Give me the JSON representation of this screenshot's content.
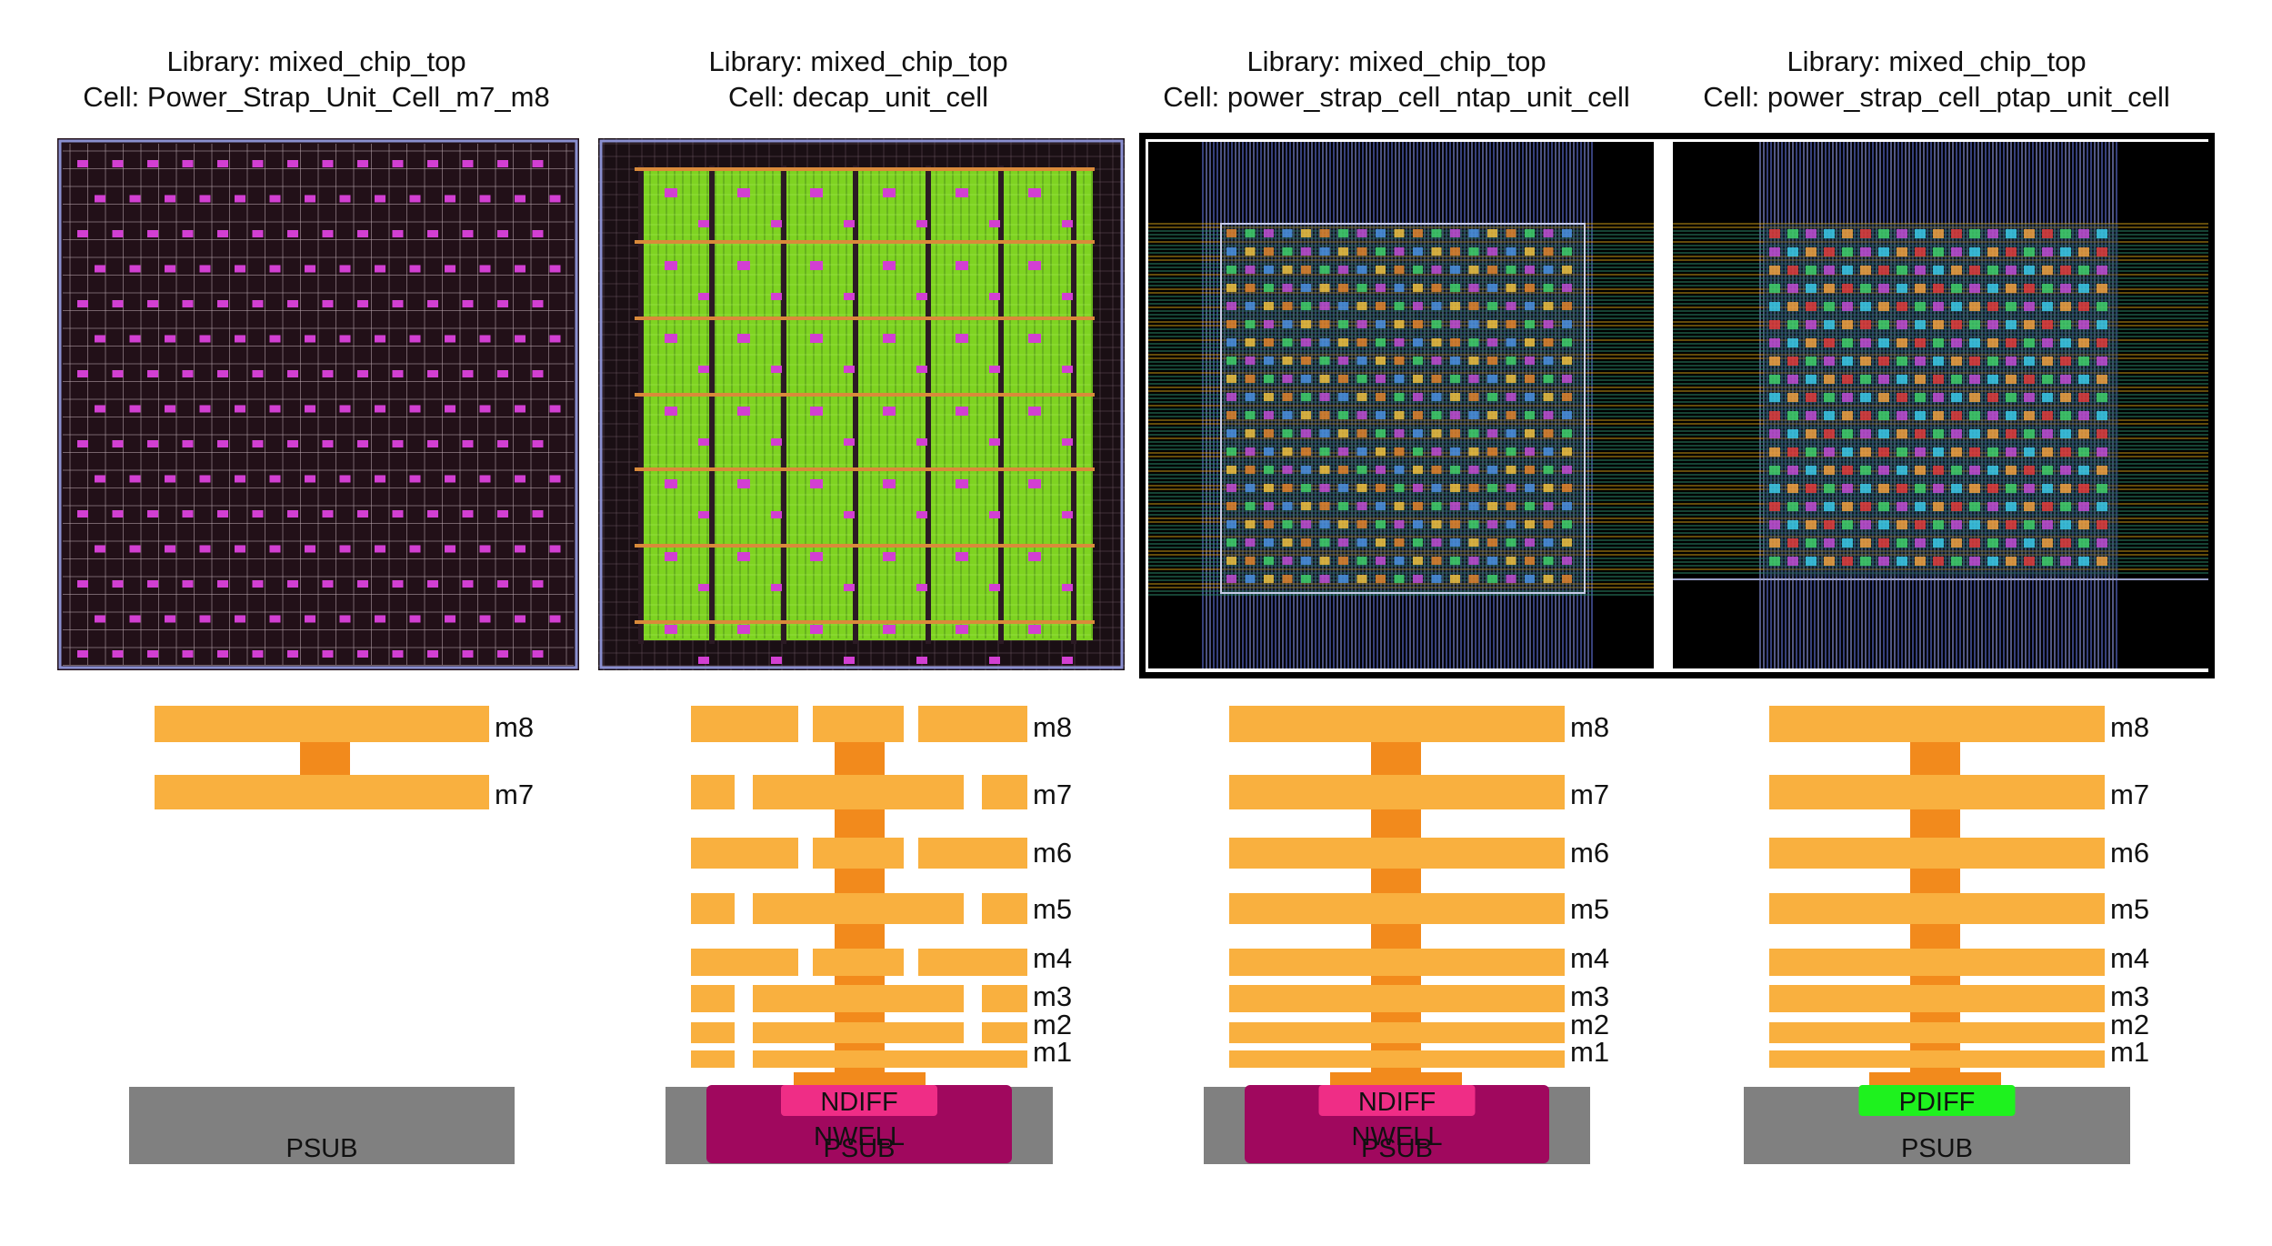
{
  "columns": [
    {
      "library": "Library: mixed_chip_top",
      "cell": "Cell: Power_Strap_Unit_Cell_m7_m8",
      "layout_style": "m7m8-grid",
      "metal_layers": [
        "m8",
        "m7"
      ],
      "substrate": {
        "psub": "PSUB"
      }
    },
    {
      "library": "Library: mixed_chip_top",
      "cell": "Cell: decap_unit_cell",
      "layout_style": "decap",
      "metal_layers": [
        "m8",
        "m7",
        "m6",
        "m5",
        "m4",
        "m3",
        "m2",
        "m1"
      ],
      "substrate": {
        "diff": "NDIFF",
        "well": "NWELL",
        "psub": "PSUB"
      }
    },
    {
      "library": "Library: mixed_chip_top",
      "cell": "Cell: power_strap_cell_ntap_unit_cell",
      "layout_style": "ntap",
      "metal_layers": [
        "m8",
        "m7",
        "m6",
        "m5",
        "m4",
        "m3",
        "m2",
        "m1"
      ],
      "substrate": {
        "diff": "NDIFF",
        "well": "NWELL",
        "psub": "PSUB"
      }
    },
    {
      "library": "Library: mixed_chip_top",
      "cell": "Cell: power_strap_cell_ptap_unit_cell",
      "layout_style": "ptap",
      "metal_layers": [
        "m8",
        "m7",
        "m6",
        "m5",
        "m4",
        "m3",
        "m2",
        "m1"
      ],
      "substrate": {
        "diff": "PDIFF",
        "psub": "PSUB"
      }
    }
  ],
  "colors": {
    "metal": "#f9b03f",
    "via": "#f28a1c",
    "psub": "#808080",
    "nwell": "#a0085e",
    "ndiff": "#ef2d86",
    "pdiff": "#1ef21e",
    "grid_bg": "#221018",
    "via_mark": "#d23fd2",
    "decap_fill": "#7ed321"
  }
}
